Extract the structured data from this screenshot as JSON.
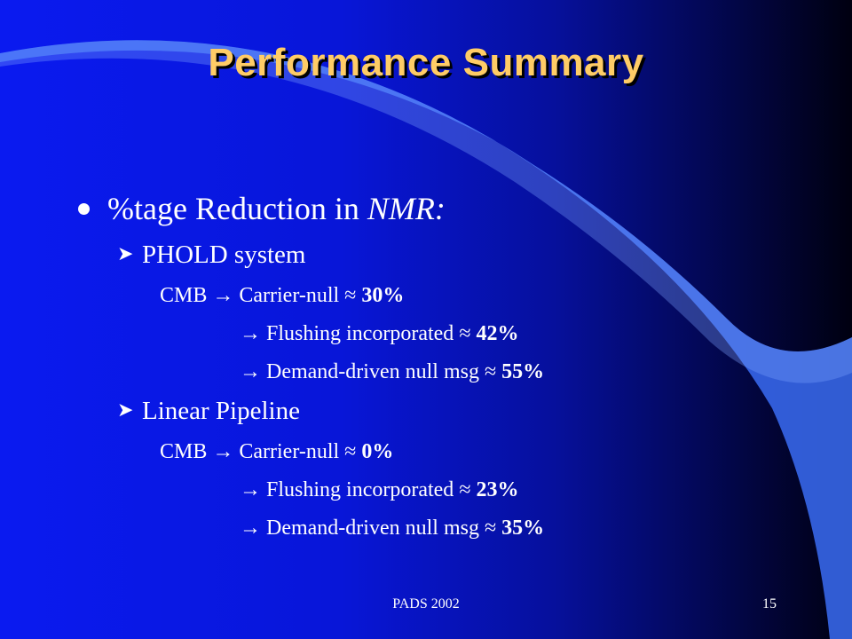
{
  "title": "Performance Summary",
  "main": {
    "bullet": "%tage Reduction in ",
    "bullet_em": "NMR:",
    "sections": [
      {
        "heading": "PHOLD system",
        "rows": [
          {
            "prefix": "CMB",
            "label": "Carrier-null",
            "approx": "≈",
            "value": "30%"
          },
          {
            "prefix": "",
            "label": "Flushing incorporated",
            "approx": "≈",
            "value": "42%"
          },
          {
            "prefix": "",
            "label": "Demand-driven null msg",
            "approx": "≈",
            "value": "55%"
          }
        ]
      },
      {
        "heading": "Linear Pipeline",
        "rows": [
          {
            "prefix": "CMB",
            "label": "Carrier-null",
            "approx": "≈",
            "value": "0%"
          },
          {
            "prefix": "",
            "label": "Flushing incorporated",
            "approx": "≈",
            "value": "23%"
          },
          {
            "prefix": "",
            "label": "Demand-driven null msg",
            "approx": "≈",
            "value": "35%"
          }
        ]
      }
    ],
    "arrow": "→",
    "subarrow": "➤"
  },
  "footer": {
    "conference": "PADS 2002",
    "page": "15"
  },
  "colors": {
    "title": "#ffcc66",
    "bg_left": "#0a1af0",
    "bg_right": "#000010",
    "swoosh": "#3a6cf4"
  }
}
